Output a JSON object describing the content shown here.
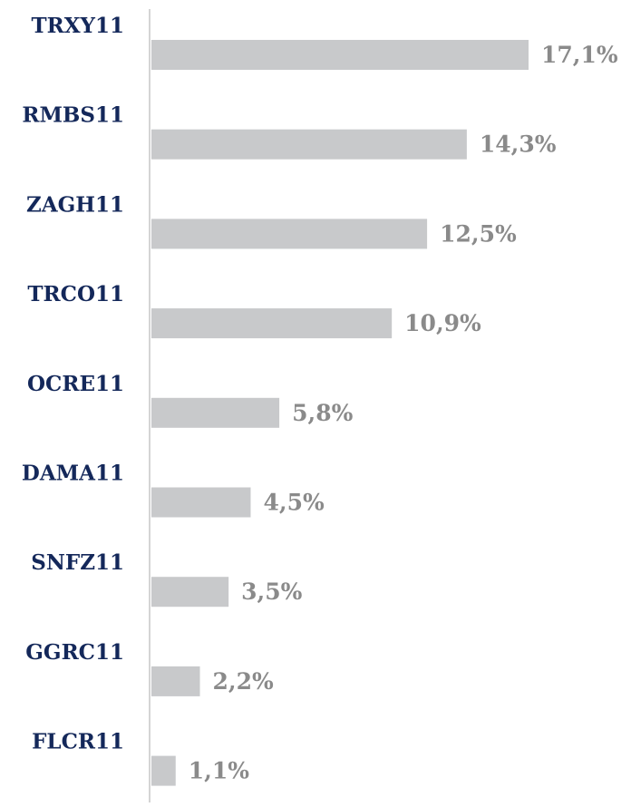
{
  "chart_data": {
    "type": "bar",
    "orientation": "horizontal",
    "categories": [
      "TRXY11",
      "RMBS11",
      "ZAGH11",
      "TRCO11",
      "OCRE11",
      "DAMA11",
      "SNFZ11",
      "GGRC11",
      "FLCR11"
    ],
    "values": [
      17.1,
      14.3,
      12.5,
      10.9,
      5.8,
      4.5,
      3.5,
      2.2,
      1.1
    ],
    "value_labels": [
      "17,1%",
      "14,3%",
      "12,5%",
      "10,9%",
      "5,8%",
      "4,5%",
      "3,5%",
      "2,2%",
      "1,1%"
    ],
    "color": "#c8c9cb"
  }
}
